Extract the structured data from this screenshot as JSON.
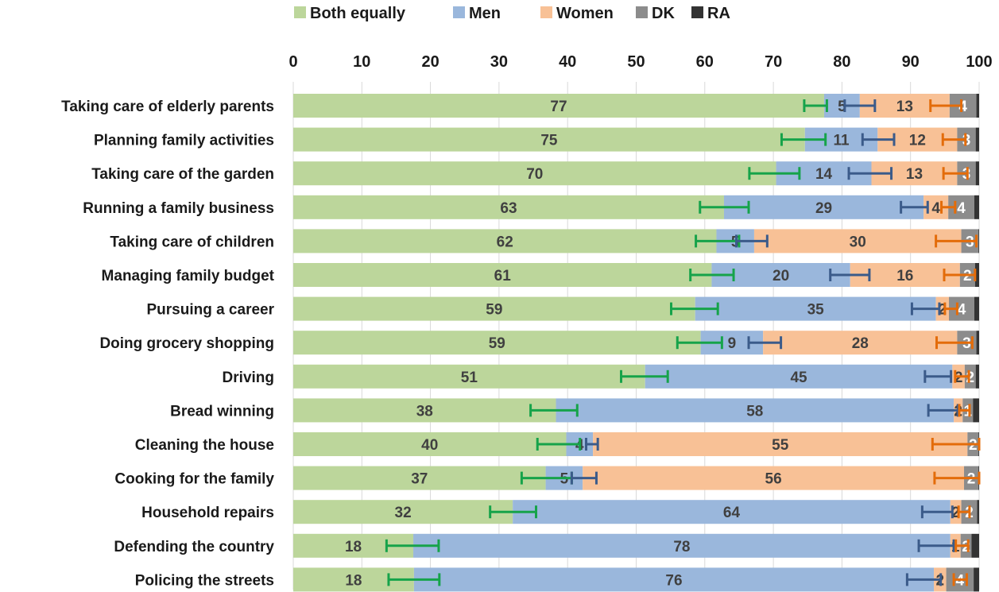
{
  "chart_data": {
    "type": "bar",
    "orientation": "horizontal",
    "stacked": true,
    "xlim": [
      0,
      100
    ],
    "x_ticks": [
      0,
      10,
      20,
      30,
      40,
      50,
      60,
      70,
      80,
      90,
      100
    ],
    "x_axis_position": "top",
    "legend_position": "top",
    "grid": true,
    "categories": [
      "Taking care of elderly parents",
      "Planning family activities",
      "Taking care of the garden",
      "Running a family business",
      "Taking care of children",
      "Managing family budget",
      "Pursuing a career",
      "Doing grocery shopping",
      "Driving",
      "Bread winning",
      "Cleaning the house",
      "Cooking for the family",
      "Household repairs",
      "Defending the country",
      "Policing the streets"
    ],
    "series": [
      {
        "name": "Both equally",
        "color": "#bcd69b",
        "label_color": "#404040",
        "values": [
          77.4,
          74.6,
          70.4,
          62.8,
          61.7,
          61.0,
          58.6,
          59.4,
          51.3,
          38.3,
          39.8,
          36.8,
          32.0,
          17.5,
          17.6
        ]
      },
      {
        "name": "Men",
        "color": "#9ab7dc",
        "label_color": "#404040",
        "values": [
          5.2,
          10.6,
          13.9,
          29.1,
          5.5,
          20.2,
          35.1,
          9.1,
          44.8,
          58.0,
          3.9,
          5.4,
          63.8,
          78.3,
          75.8
        ]
      },
      {
        "name": "Women",
        "color": "#f8c196",
        "label_color": "#404040",
        "values": [
          13.1,
          11.6,
          12.5,
          3.6,
          30.2,
          16.0,
          1.9,
          28.3,
          1.8,
          1.3,
          54.6,
          55.6,
          1.6,
          1.5,
          1.8
        ]
      },
      {
        "name": "DK",
        "color": "#8c8c8c",
        "label_color": "#ffffff",
        "values": [
          3.9,
          2.7,
          2.7,
          3.8,
          2.5,
          2.2,
          3.7,
          2.8,
          1.6,
          1.5,
          1.6,
          2.1,
          2.3,
          1.6,
          4.0
        ]
      },
      {
        "name": "RA",
        "color": "#333333",
        "label_color": "#ffffff",
        "values": [
          0.4,
          0.5,
          0.5,
          0.7,
          0.1,
          0.6,
          0.7,
          0.4,
          0.5,
          0.9,
          0.1,
          0.1,
          0.3,
          1.1,
          0.8
        ]
      }
    ],
    "data_labels": [
      [
        "77",
        "5",
        "13",
        "4",
        ""
      ],
      [
        "75",
        "11",
        "12",
        "3",
        ""
      ],
      [
        "70",
        "14",
        "13",
        "3",
        ""
      ],
      [
        "63",
        "29",
        "4",
        "4",
        ""
      ],
      [
        "62",
        "5",
        "30",
        "3",
        ""
      ],
      [
        "61",
        "20",
        "16",
        "2",
        ""
      ],
      [
        "59",
        "35",
        "2",
        "4",
        ""
      ],
      [
        "59",
        "9",
        "28",
        "3",
        ""
      ],
      [
        "51",
        "45",
        "2",
        "2",
        ""
      ],
      [
        "38",
        "58",
        "2",
        "1",
        ""
      ],
      [
        "40",
        "4",
        "55",
        "2",
        ""
      ],
      [
        "37",
        "5",
        "56",
        "2",
        ""
      ],
      [
        "32",
        "64",
        "2",
        "2",
        ""
      ],
      [
        "18",
        "78",
        "1",
        "2",
        ""
      ],
      [
        "18",
        "76",
        "2",
        "4",
        ""
      ]
    ],
    "error_bars": [
      {
        "series": "Both equally",
        "color": "#16a34a",
        "ranges": [
          [
            74.5,
            77.8
          ],
          [
            71.2,
            77.6
          ],
          [
            66.5,
            73.8
          ],
          [
            59.3,
            66.4
          ],
          [
            58.7,
            65.0
          ],
          [
            57.9,
            64.2
          ],
          [
            55.1,
            61.9
          ],
          [
            56.0,
            62.5
          ],
          [
            47.8,
            54.6
          ],
          [
            34.6,
            41.4
          ],
          [
            35.6,
            41.8
          ],
          [
            33.3,
            40.6
          ],
          [
            28.7,
            35.4
          ],
          [
            13.6,
            21.2
          ],
          [
            13.9,
            21.3
          ]
        ]
      },
      {
        "series": "Men",
        "color": "#3b5b8a",
        "ranges": [
          [
            80.4,
            84.8
          ],
          [
            83.0,
            87.6
          ],
          [
            81.0,
            87.2
          ],
          [
            88.6,
            92.5
          ],
          [
            64.6,
            69.1
          ],
          [
            78.3,
            84.0
          ],
          [
            90.2,
            94.2
          ],
          [
            66.4,
            71.1
          ],
          [
            92.1,
            95.9
          ],
          [
            92.6,
            96.9
          ],
          [
            42.7,
            44.4
          ],
          [
            40.6,
            44.2
          ],
          [
            91.7,
            96.1
          ],
          [
            91.2,
            96.3
          ],
          [
            89.5,
            94.4
          ]
        ]
      },
      {
        "series": "Women",
        "color": "#e36c0a",
        "ranges": [
          [
            92.9,
            97.4
          ],
          [
            94.7,
            98.0
          ],
          [
            94.8,
            98.3
          ],
          [
            94.5,
            96.5
          ],
          [
            93.7,
            99.6
          ],
          [
            94.9,
            99.4
          ],
          [
            95.0,
            96.8
          ],
          [
            93.8,
            99.0
          ],
          [
            96.5,
            98.5
          ],
          [
            97.1,
            98.6
          ],
          [
            93.2,
            100.0
          ],
          [
            93.5,
            100.0
          ],
          [
            97.0,
            98.6
          ],
          [
            96.6,
            98.4
          ],
          [
            96.3,
            98.2
          ]
        ]
      }
    ]
  }
}
